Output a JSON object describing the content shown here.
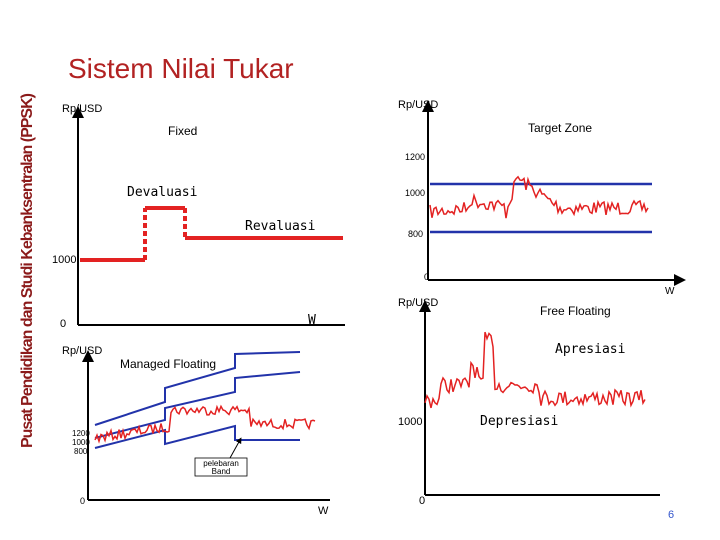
{
  "title": "Sistem Nilai Tukar",
  "sidebar": "Pusat Pendidikan dan Studi Kebanksentralan (PPSK)",
  "fixed": {
    "y_axis": "Rp/USD",
    "label": "Fixed",
    "devaluasi": "Devaluasi",
    "revaluasi": "Revaluasi",
    "level": "1000",
    "origin": "0",
    "x_axis": "W"
  },
  "target_zone": {
    "y_axis": "Rp/USD",
    "label": "Target Zone",
    "upper": "1200",
    "middle": "1000",
    "lower": "800",
    "origin": "0",
    "x_axis": "W"
  },
  "managed": {
    "y_axis": "Rp/USD",
    "label": "Managed Floating",
    "upper": "1200",
    "middle": "1000",
    "lower": "800",
    "band_note_1": "pelebaran",
    "band_note_2": "Band",
    "origin": "0",
    "x_axis": "W"
  },
  "free": {
    "y_axis": "Rp/USD",
    "label": "Free Floating",
    "apresiasi": "Apresiasi",
    "depresiasi": "Depresiasi",
    "level": "1000",
    "origin": "0"
  },
  "page_number": "6"
}
